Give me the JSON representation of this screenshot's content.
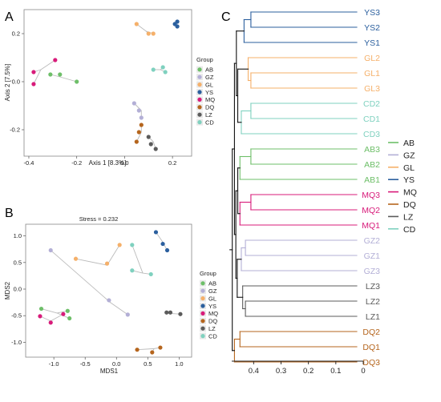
{
  "colors": {
    "AB": "#6ebf69",
    "GZ": "#b3afd6",
    "GL": "#f5b06a",
    "YS": "#2b5f9e",
    "MQ": "#d81b7a",
    "DQ": "#b5651d",
    "LZ": "#5b5b5b",
    "CD": "#7fd1bf",
    "root": "#111111",
    "link": "#bbbbbb"
  },
  "legend": {
    "title": "Group",
    "entries": [
      "AB",
      "GZ",
      "GL",
      "YS",
      "MQ",
      "DQ",
      "LZ",
      "CD"
    ]
  },
  "chart_data": [
    {
      "panel": "A",
      "type": "scatter",
      "title": "",
      "xlabel": "Axis 1 [8.3%]",
      "ylabel": "Axis 2 [7.5%]",
      "xlim": [
        -0.42,
        0.28
      ],
      "ylim": [
        -0.31,
        0.3
      ],
      "xticks": [
        "-0.4",
        "-0.2",
        "0.0",
        "0.2"
      ],
      "xtick_values": [
        -0.4,
        -0.2,
        0.0,
        0.2
      ],
      "yticks": [
        "-0.2",
        "0.0",
        "0.2"
      ],
      "ytick_values": [
        -0.2,
        0.0,
        0.2
      ],
      "groups": [
        {
          "name": "AB",
          "centroid": [
            -0.27,
            0.02
          ],
          "points": [
            [
              -0.31,
              0.03
            ],
            [
              -0.27,
              0.03
            ],
            [
              -0.2,
              0.0
            ]
          ]
        },
        {
          "name": "MQ",
          "centroid": [
            -0.35,
            0.05
          ],
          "points": [
            [
              -0.38,
              0.04
            ],
            [
              -0.29,
              0.09
            ],
            [
              -0.38,
              -0.01
            ]
          ]
        },
        {
          "name": "GL",
          "centroid": [
            0.09,
            0.21
          ],
          "points": [
            [
              0.05,
              0.24
            ],
            [
              0.1,
              0.2
            ],
            [
              0.12,
              0.2
            ]
          ]
        },
        {
          "name": "YS",
          "centroid": [
            0.215,
            0.24
          ],
          "points": [
            [
              0.21,
              0.24
            ],
            [
              0.22,
              0.25
            ],
            [
              0.22,
              0.23
            ]
          ]
        },
        {
          "name": "CD",
          "centroid": [
            0.15,
            0.05
          ],
          "points": [
            [
              0.12,
              0.05
            ],
            [
              0.16,
              0.06
            ],
            [
              0.17,
              0.04
            ]
          ]
        },
        {
          "name": "GZ",
          "centroid": [
            0.07,
            -0.12
          ],
          "points": [
            [
              0.04,
              -0.09
            ],
            [
              0.06,
              -0.12
            ],
            [
              0.07,
              -0.15
            ]
          ]
        },
        {
          "name": "DQ",
          "centroid": [
            0.07,
            -0.21
          ],
          "points": [
            [
              0.07,
              -0.18
            ],
            [
              0.06,
              -0.21
            ],
            [
              0.05,
              -0.25
            ]
          ]
        },
        {
          "name": "LZ",
          "centroid": [
            0.12,
            -0.25
          ],
          "points": [
            [
              0.1,
              -0.23
            ],
            [
              0.11,
              -0.26
            ],
            [
              0.13,
              -0.28
            ]
          ]
        }
      ]
    },
    {
      "panel": "B",
      "type": "scatter",
      "title": "Stress = 0.232",
      "xlabel": "MDS1",
      "ylabel": "MDS2",
      "xlim": [
        -1.45,
        1.2
      ],
      "ylim": [
        -1.28,
        1.22
      ],
      "xticks": [
        "-1.0",
        "-0.5",
        "0.0",
        "0.5",
        "1.0"
      ],
      "xtick_values": [
        -1.0,
        -0.5,
        0.0,
        0.5,
        1.0
      ],
      "yticks": [
        "-1.0",
        "-0.5",
        "0.0",
        "0.5",
        "1.0"
      ],
      "ytick_values": [
        -1.0,
        -0.5,
        0.0,
        0.5,
        1.0
      ],
      "groups": [
        {
          "name": "AB",
          "centroid": [
            -0.95,
            -0.45
          ],
          "points": [
            [
              -1.2,
              -0.37
            ],
            [
              -0.78,
              -0.41
            ],
            [
              -0.75,
              -0.55
            ]
          ]
        },
        {
          "name": "MQ",
          "centroid": [
            -1.05,
            -0.6
          ],
          "points": [
            [
              -1.22,
              -0.51
            ],
            [
              -0.85,
              -0.47
            ],
            [
              -1.05,
              -0.63
            ]
          ]
        },
        {
          "name": "GZ",
          "centroid": [
            -0.1,
            -0.25
          ],
          "points": [
            [
              -1.05,
              0.73
            ],
            [
              -0.12,
              -0.21
            ],
            [
              0.18,
              -0.48
            ]
          ]
        },
        {
          "name": "GL",
          "centroid": [
            -0.15,
            0.45
          ],
          "points": [
            [
              -0.65,
              0.57
            ],
            [
              -0.15,
              0.48
            ],
            [
              0.05,
              0.83
            ]
          ]
        },
        {
          "name": "CD",
          "centroid": [
            0.42,
            0.3
          ],
          "points": [
            [
              0.25,
              0.83
            ],
            [
              0.25,
              0.35
            ],
            [
              0.55,
              0.28
            ]
          ]
        },
        {
          "name": "YS",
          "centroid": [
            0.73,
            0.9
          ],
          "points": [
            [
              0.63,
              1.07
            ],
            [
              0.74,
              0.85
            ],
            [
              0.81,
              0.73
            ]
          ]
        },
        {
          "name": "LZ",
          "centroid": [
            0.88,
            -0.46
          ],
          "points": [
            [
              0.8,
              -0.44
            ],
            [
              0.86,
              -0.44
            ],
            [
              1.02,
              -0.47
            ]
          ]
        },
        {
          "name": "DQ",
          "centroid": [
            0.6,
            -1.12
          ],
          "points": [
            [
              0.33,
              -1.14
            ],
            [
              0.7,
              -1.1
            ],
            [
              0.57,
              -1.19
            ]
          ]
        }
      ]
    },
    {
      "panel": "C",
      "type": "dendrogram",
      "xlim": [
        0.48,
        0
      ],
      "xticks": [
        "0.4",
        "0.3",
        "0.2",
        "0.1",
        "0"
      ],
      "xtick_values": [
        0.4,
        0.3,
        0.2,
        0.1,
        0
      ],
      "leaves": [
        {
          "label": "YS3",
          "group": "YS"
        },
        {
          "label": "YS2",
          "group": "YS"
        },
        {
          "label": "YS1",
          "group": "YS"
        },
        {
          "label": "GL2",
          "group": "GL"
        },
        {
          "label": "GL1",
          "group": "GL"
        },
        {
          "label": "GL3",
          "group": "GL"
        },
        {
          "label": "CD2",
          "group": "CD"
        },
        {
          "label": "CD1",
          "group": "CD"
        },
        {
          "label": "CD3",
          "group": "CD"
        },
        {
          "label": "AB3",
          "group": "AB"
        },
        {
          "label": "AB2",
          "group": "AB"
        },
        {
          "label": "AB1",
          "group": "AB"
        },
        {
          "label": "MQ3",
          "group": "MQ"
        },
        {
          "label": "MQ2",
          "group": "MQ"
        },
        {
          "label": "MQ1",
          "group": "MQ"
        },
        {
          "label": "GZ2",
          "group": "GZ"
        },
        {
          "label": "GZ1",
          "group": "GZ"
        },
        {
          "label": "GZ3",
          "group": "GZ"
        },
        {
          "label": "LZ3",
          "group": "LZ"
        },
        {
          "label": "LZ2",
          "group": "LZ"
        },
        {
          "label": "LZ1",
          "group": "LZ"
        },
        {
          "label": "DQ2",
          "group": "DQ"
        },
        {
          "label": "DQ1",
          "group": "DQ"
        },
        {
          "label": "DQ3",
          "group": "DQ"
        }
      ],
      "clusters": [
        {
          "group": "YS",
          "leaves": [
            0,
            1,
            2
          ],
          "inner_pair": [
            0,
            1
          ],
          "inner_height": 0.41,
          "height": 0.435
        },
        {
          "group": "GL",
          "leaves": [
            3,
            4,
            5
          ],
          "inner_pair": [
            4,
            5
          ],
          "inner_height": 0.41,
          "height": 0.42
        },
        {
          "group": "CD",
          "leaves": [
            6,
            7,
            8
          ],
          "inner_pair": [
            6,
            7
          ],
          "inner_height": 0.41,
          "height": 0.445
        },
        {
          "group": "AB",
          "leaves": [
            9,
            10,
            11
          ],
          "inner_pair": [
            9,
            10
          ],
          "inner_height": 0.41,
          "height": 0.45
        },
        {
          "group": "MQ",
          "leaves": [
            12,
            13,
            14
          ],
          "inner_pair": [
            12,
            13
          ],
          "inner_height": 0.41,
          "height": 0.45
        },
        {
          "group": "GZ",
          "leaves": [
            15,
            16,
            17
          ],
          "inner_pair": [
            15,
            16
          ],
          "inner_height": 0.43,
          "height": 0.445
        },
        {
          "group": "LZ",
          "leaves": [
            18,
            19,
            20
          ],
          "inner_pair": [
            19,
            20
          ],
          "inner_height": 0.43,
          "height": 0.44
        },
        {
          "group": "DQ",
          "leaves": [
            21,
            22,
            23
          ],
          "inner_pair": [
            21,
            22
          ],
          "inner_height": 0.45,
          "height": 0.47
        }
      ],
      "root_merges": [
        {
          "children": [
            "GL",
            "CD"
          ],
          "height": 0.458
        },
        {
          "children": [
            "YS",
            "GL+CD"
          ],
          "height": 0.463
        },
        {
          "children": [
            "AB",
            "MQ"
          ],
          "height": 0.458
        },
        {
          "children": [
            "GZ",
            "LZ"
          ],
          "height": 0.46
        },
        {
          "children": [
            "AB+MQ",
            "GZ+LZ"
          ],
          "height": 0.465
        },
        {
          "children": [
            "YS+GL+CD",
            "AB+MQ+GZ+LZ"
          ],
          "height": 0.47
        },
        {
          "children": [
            "ALL",
            "DQ"
          ],
          "height": 0.478
        }
      ]
    }
  ],
  "panel_labels": [
    "A",
    "B",
    "C"
  ]
}
